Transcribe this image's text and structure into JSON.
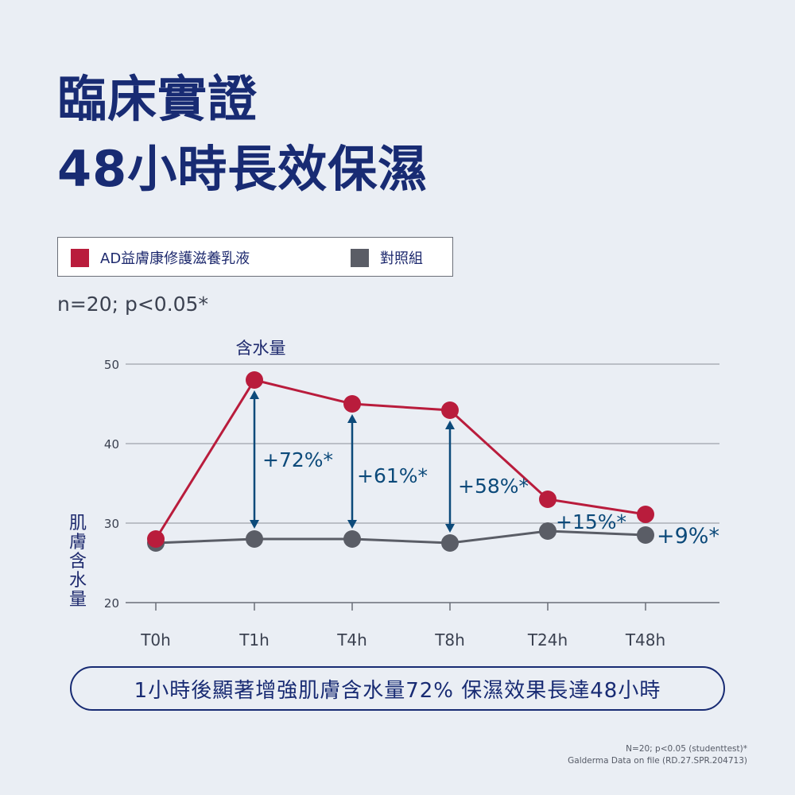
{
  "title_line1": "臨床實證",
  "title_line2": "48小時長效保濕",
  "legend": {
    "items": [
      {
        "label": "AD益膚康修護滋養乳液",
        "color": "#b91c3c"
      },
      {
        "label": "對照組",
        "color": "#5a5d66"
      }
    ]
  },
  "sample_note": "n=20; p<0.05*",
  "chart_data": {
    "type": "line",
    "title": "含水量",
    "ylabel": "肌膚含水量",
    "xlabel": "",
    "categories": [
      "T0h",
      "T1h",
      "T4h",
      "T8h",
      "T24h",
      "T48h"
    ],
    "ylim": [
      20,
      50
    ],
    "yticks": [
      20,
      30,
      40,
      50
    ],
    "grid": true,
    "series": [
      {
        "name": "AD益膚康修護滋養乳液",
        "color": "#b91c3c",
        "values": [
          28,
          48,
          45,
          44.2,
          33,
          31.1
        ]
      },
      {
        "name": "對照組",
        "color": "#5a5d66",
        "values": [
          27.5,
          28,
          28,
          27.5,
          29,
          28.5
        ]
      }
    ],
    "annotations": [
      {
        "category": "T1h",
        "text": "+72%*",
        "arrow": true
      },
      {
        "category": "T4h",
        "text": "+61%*",
        "arrow": true
      },
      {
        "category": "T8h",
        "text": "+58%*",
        "arrow": true
      },
      {
        "category": "T24h",
        "text": "+15%*",
        "arrow": false
      },
      {
        "category": "T48h",
        "text": "+9%*",
        "arrow": false
      }
    ],
    "colors": {
      "axis": "#6b6f78",
      "grid": "#8a8e98",
      "annotation": "#0c4a7a"
    }
  },
  "callout": "1小時後顯著增強肌膚含水量72% 保濕效果長達48小時",
  "footnote": {
    "line1": "N=20; p<0.05 (studenttest)*",
    "line2": "Galderma Data on file (RD.27.SPR.204713)"
  }
}
